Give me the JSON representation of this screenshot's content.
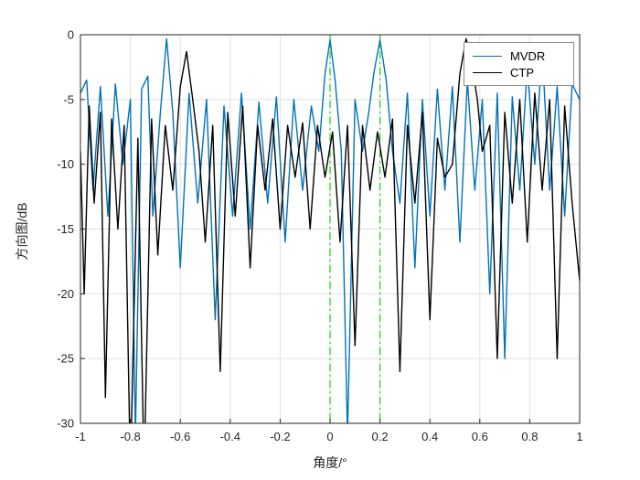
{
  "figure": {
    "xlabel": "角度/°",
    "ylabel": "方向图/dB",
    "background": "#ffffff",
    "axis_color": "#262626",
    "grid_color": "#e0e0e0",
    "legend": [
      {
        "label": "MVDR",
        "color": "#0072BD"
      },
      {
        "label": "CTP",
        "color": "#000000"
      }
    ]
  },
  "chart_data": {
    "type": "line",
    "title": "",
    "xlabel": "角度/°",
    "ylabel": "方向图/dB",
    "xlim": [
      -1,
      1
    ],
    "ylim": [
      -30,
      0
    ],
    "xticks": [
      -1,
      -0.8,
      -0.6,
      -0.4,
      -0.2,
      0,
      0.2,
      0.4,
      0.6,
      0.8,
      1
    ],
    "yticks": [
      0,
      -5,
      -10,
      -15,
      -20,
      -25,
      -30
    ],
    "grid": true,
    "legend_position": "top-right",
    "marker_lines": {
      "x": [
        0,
        0.2
      ],
      "style": "dash-dot",
      "color": "#00dd00"
    },
    "series": [
      {
        "name": "MVDR",
        "color": "#0072BD",
        "points": [
          [
            -1.0,
            -4.5
          ],
          [
            -0.975,
            -3.5
          ],
          [
            -0.95,
            -12
          ],
          [
            -0.92,
            -4
          ],
          [
            -0.89,
            -14
          ],
          [
            -0.86,
            -3.8
          ],
          [
            -0.83,
            -10
          ],
          [
            -0.8,
            -5
          ],
          [
            -0.78,
            -31
          ],
          [
            -0.755,
            -4.2
          ],
          [
            -0.73,
            -3.2
          ],
          [
            -0.71,
            -14
          ],
          [
            -0.68,
            -6
          ],
          [
            -0.655,
            -0.3
          ],
          [
            -0.63,
            -6
          ],
          [
            -0.6,
            -18
          ],
          [
            -0.565,
            -4.5
          ],
          [
            -0.53,
            -13
          ],
          [
            -0.495,
            -5
          ],
          [
            -0.46,
            -22
          ],
          [
            -0.425,
            -5.5
          ],
          [
            -0.39,
            -14
          ],
          [
            -0.355,
            -4.5
          ],
          [
            -0.32,
            -15
          ],
          [
            -0.285,
            -5.2
          ],
          [
            -0.25,
            -13
          ],
          [
            -0.215,
            -4.8
          ],
          [
            -0.18,
            -16
          ],
          [
            -0.145,
            -5
          ],
          [
            -0.11,
            -12
          ],
          [
            -0.075,
            -5.5
          ],
          [
            -0.045,
            -9
          ],
          [
            -0.02,
            -3
          ],
          [
            0.0,
            -0.4
          ],
          [
            0.02,
            -3.5
          ],
          [
            0.045,
            -9
          ],
          [
            0.07,
            -31
          ],
          [
            0.1,
            -5
          ],
          [
            0.13,
            -9
          ],
          [
            0.155,
            -6
          ],
          [
            0.175,
            -3
          ],
          [
            0.2,
            -0.4
          ],
          [
            0.225,
            -3.5
          ],
          [
            0.25,
            -9
          ],
          [
            0.28,
            -13
          ],
          [
            0.31,
            -4.5
          ],
          [
            0.34,
            -18
          ],
          [
            0.37,
            -5
          ],
          [
            0.4,
            -14
          ],
          [
            0.43,
            -4.2
          ],
          [
            0.46,
            -12
          ],
          [
            0.49,
            -4
          ],
          [
            0.52,
            -16
          ],
          [
            0.55,
            -3.5
          ],
          [
            0.58,
            -12
          ],
          [
            0.61,
            -5
          ],
          [
            0.64,
            -20
          ],
          [
            0.67,
            -4.5
          ],
          [
            0.7,
            -25
          ],
          [
            0.73,
            -4.8
          ],
          [
            0.76,
            -12
          ],
          [
            0.79,
            -2.5
          ],
          [
            0.82,
            -10
          ],
          [
            0.85,
            -1.2
          ],
          [
            0.88,
            -12
          ],
          [
            0.91,
            -4
          ],
          [
            0.94,
            -14
          ],
          [
            0.97,
            -3.8
          ],
          [
            1.0,
            -5
          ]
        ]
      },
      {
        "name": "CTP",
        "color": "#000000",
        "points": [
          [
            -1.0,
            -9
          ],
          [
            -0.985,
            -20
          ],
          [
            -0.965,
            -5.5
          ],
          [
            -0.945,
            -13
          ],
          [
            -0.92,
            -6
          ],
          [
            -0.9,
            -28
          ],
          [
            -0.875,
            -6.5
          ],
          [
            -0.85,
            -15
          ],
          [
            -0.825,
            -7
          ],
          [
            -0.8,
            -34
          ],
          [
            -0.77,
            -8
          ],
          [
            -0.745,
            -34
          ],
          [
            -0.715,
            -6.5
          ],
          [
            -0.69,
            -17
          ],
          [
            -0.66,
            -7
          ],
          [
            -0.63,
            -12
          ],
          [
            -0.6,
            -4
          ],
          [
            -0.575,
            -1.3
          ],
          [
            -0.55,
            -5
          ],
          [
            -0.525,
            -9
          ],
          [
            -0.5,
            -16
          ],
          [
            -0.47,
            -7
          ],
          [
            -0.44,
            -26
          ],
          [
            -0.41,
            -6
          ],
          [
            -0.38,
            -14
          ],
          [
            -0.35,
            -5.5
          ],
          [
            -0.32,
            -18
          ],
          [
            -0.29,
            -7
          ],
          [
            -0.26,
            -12
          ],
          [
            -0.23,
            -6.5
          ],
          [
            -0.2,
            -15
          ],
          [
            -0.17,
            -7
          ],
          [
            -0.14,
            -11
          ],
          [
            -0.11,
            -6.8
          ],
          [
            -0.08,
            -15
          ],
          [
            -0.05,
            -7
          ],
          [
            -0.02,
            -11
          ],
          [
            0.01,
            -7.5
          ],
          [
            0.04,
            -16
          ],
          [
            0.07,
            -7
          ],
          [
            0.1,
            -24
          ],
          [
            0.13,
            -7
          ],
          [
            0.16,
            -12
          ],
          [
            0.19,
            -7.5
          ],
          [
            0.22,
            -11
          ],
          [
            0.25,
            -6.5
          ],
          [
            0.28,
            -26
          ],
          [
            0.31,
            -7
          ],
          [
            0.34,
            -13
          ],
          [
            0.37,
            -6
          ],
          [
            0.4,
            -22
          ],
          [
            0.43,
            -8
          ],
          [
            0.46,
            -11
          ],
          [
            0.49,
            -10
          ],
          [
            0.52,
            -3
          ],
          [
            0.545,
            -0.3
          ],
          [
            0.57,
            -2.5
          ],
          [
            0.59,
            -5
          ],
          [
            0.61,
            -9
          ],
          [
            0.64,
            -7
          ],
          [
            0.67,
            -25
          ],
          [
            0.7,
            -6
          ],
          [
            0.73,
            -13
          ],
          [
            0.76,
            -5
          ],
          [
            0.79,
            -16
          ],
          [
            0.82,
            -4.5
          ],
          [
            0.85,
            -12
          ],
          [
            0.88,
            -5
          ],
          [
            0.91,
            -25
          ],
          [
            0.94,
            -5.5
          ],
          [
            0.97,
            -13
          ],
          [
            1.0,
            -19
          ]
        ]
      }
    ]
  }
}
